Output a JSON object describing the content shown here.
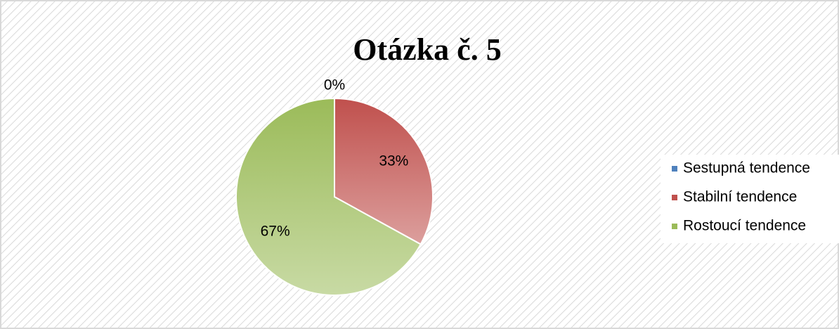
{
  "chart_data": {
    "type": "pie",
    "title": "Otázka č. 5",
    "categories": [
      "Sestupná tendence",
      "Stabilní tendence",
      "Rostoucí tendence"
    ],
    "values": [
      0,
      33,
      67
    ],
    "value_labels": [
      "0%",
      "33%",
      "67%"
    ],
    "colors": [
      "#4f81bd",
      "#c0504d",
      "#9bbb59"
    ],
    "legend": "right"
  }
}
